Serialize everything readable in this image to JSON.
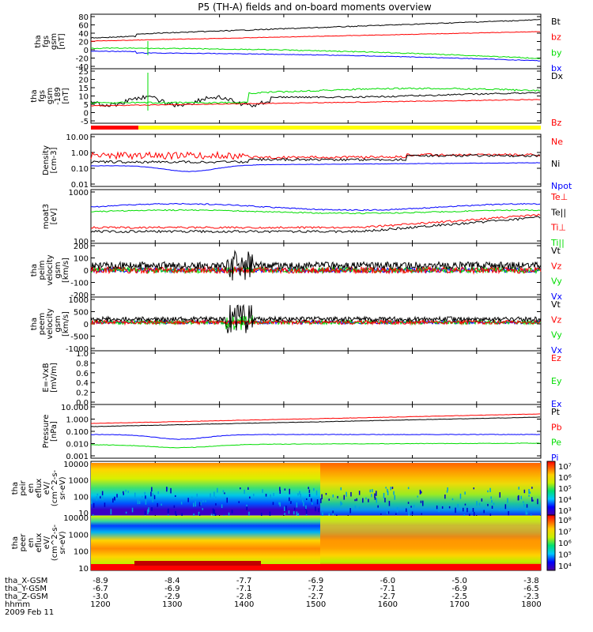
{
  "chart_data": {
    "type": "line",
    "title": "P5 (TH-A) fields and on-board moments overview",
    "colors": {
      "black": "#000000",
      "red": "#ff0000",
      "green": "#00dd00",
      "blue": "#0000ff",
      "yellow": "#ffff00"
    },
    "panels": [
      {
        "ylabel": [
          "tha",
          "fgs",
          "gsm",
          "[nT]"
        ],
        "ticks": [
          "80",
          "60",
          "40",
          "20",
          "0",
          "-20",
          "-40"
        ],
        "legend": [
          {
            "name": "Bt",
            "color": "black"
          },
          {
            "name": "bz",
            "color": "red"
          },
          {
            "name": "by",
            "color": "green"
          },
          {
            "name": "bx",
            "color": "blue"
          }
        ]
      },
      {
        "ylabel": [
          "tha",
          "fgs",
          "gsm",
          "-189",
          "[nT]"
        ],
        "ticks": [
          "25",
          "20",
          "15",
          "10",
          "5",
          "0",
          "-5"
        ],
        "legend": [
          {
            "name": "Dx",
            "color": "black"
          },
          {
            "name": "Bz",
            "color": "red"
          }
        ]
      },
      {
        "ylabel": [
          "Density",
          "[cm-3]"
        ],
        "ticks": [
          "10.00",
          "1.00",
          "0.10",
          "0.01"
        ],
        "legend": [
          {
            "name": "Ne",
            "color": "red"
          },
          {
            "name": "Ni",
            "color": "black"
          },
          {
            "name": "Npot",
            "color": "blue"
          }
        ]
      },
      {
        "ylabel": [
          "moat3",
          "[eV]"
        ],
        "ticks": [
          "1000",
          "100"
        ],
        "legend": [
          {
            "name": "Te⊥",
            "color": "red"
          },
          {
            "name": "Te||",
            "color": "black"
          },
          {
            "name": "Ti⊥",
            "color": "red"
          },
          {
            "name": "Ti||",
            "color": "green"
          }
        ]
      },
      {
        "ylabel": [
          "tha",
          "peim",
          "velocity",
          "gsm",
          "[km/s]"
        ],
        "ticks": [
          "200",
          "100",
          "0",
          "-100",
          "-200"
        ],
        "legend": [
          {
            "name": "Vt",
            "color": "black"
          },
          {
            "name": "Vz",
            "color": "red"
          },
          {
            "name": "Vy",
            "color": "green"
          },
          {
            "name": "Vx",
            "color": "blue"
          }
        ]
      },
      {
        "ylabel": [
          "tha",
          "peem",
          "velocity",
          "gsm",
          "[km/s]"
        ],
        "ticks": [
          "1000",
          "500",
          "0",
          "-500",
          "-1000"
        ],
        "legend": [
          {
            "name": "Vt",
            "color": "black"
          },
          {
            "name": "Vz",
            "color": "red"
          },
          {
            "name": "Vy",
            "color": "green"
          },
          {
            "name": "Vx",
            "color": "blue"
          }
        ]
      },
      {
        "ylabel": [
          "E=-VxB",
          "[mV/m]"
        ],
        "ticks": [
          "1.0",
          "0.8",
          "0.6",
          "0.4",
          "0.2",
          "0.0"
        ],
        "legend": [
          {
            "name": "Ez",
            "color": "red"
          },
          {
            "name": "Ey",
            "color": "green"
          },
          {
            "name": "Ex",
            "color": "blue"
          }
        ]
      },
      {
        "ylabel": [
          "Pressure",
          "[nPa]"
        ],
        "ticks": [
          "10.000",
          "1.000",
          "0.100",
          "0.010",
          "0.001"
        ],
        "legend": [
          {
            "name": "Pt",
            "color": "black"
          },
          {
            "name": "Pb",
            "color": "red"
          },
          {
            "name": "Pe",
            "color": "green"
          },
          {
            "name": "Pi",
            "color": "blue"
          }
        ]
      },
      {
        "ylabel": [
          "tha",
          "peir",
          "en",
          "eflux",
          "eV/",
          "(cm^2-s-",
          "sr-eV)"
        ],
        "ticks": [
          "10000",
          "1000",
          "100",
          "10"
        ],
        "cbar_ticks": [
          "10⁷",
          "10⁶",
          "10⁵",
          "10⁴",
          "10³"
        ]
      },
      {
        "ylabel": [
          "tha",
          "peer",
          "en",
          "eflux",
          "eV/",
          "(cm^2-s-",
          "sr-eV)"
        ],
        "ticks": [
          "10000",
          "1000",
          "100",
          "10"
        ],
        "cbar_ticks": [
          "10⁸",
          "10⁷",
          "10⁶",
          "10⁵",
          "10⁴"
        ]
      }
    ],
    "x_axis": {
      "rows": [
        {
          "label": "tha_X-GSM",
          "values": [
            "-8.9",
            "-8.4",
            "-7.7",
            "-6.9",
            "-6.0",
            "-5.0",
            "-3.8"
          ]
        },
        {
          "label": "tha_Y-GSM",
          "values": [
            "-6.7",
            "-6.9",
            "-7.1",
            "-7.2",
            "-7.1",
            "-6.9",
            "-6.5"
          ]
        },
        {
          "label": "tha_Z-GSM",
          "values": [
            "-3.0",
            "-2.9",
            "-2.8",
            "-2.7",
            "-2.7",
            "-2.5",
            "-2.3"
          ]
        },
        {
          "label": "hhmm",
          "values": [
            "1200",
            "1300",
            "1400",
            "1500",
            "1600",
            "1700",
            "1800"
          ]
        }
      ],
      "date": "2009 Feb 11"
    }
  }
}
